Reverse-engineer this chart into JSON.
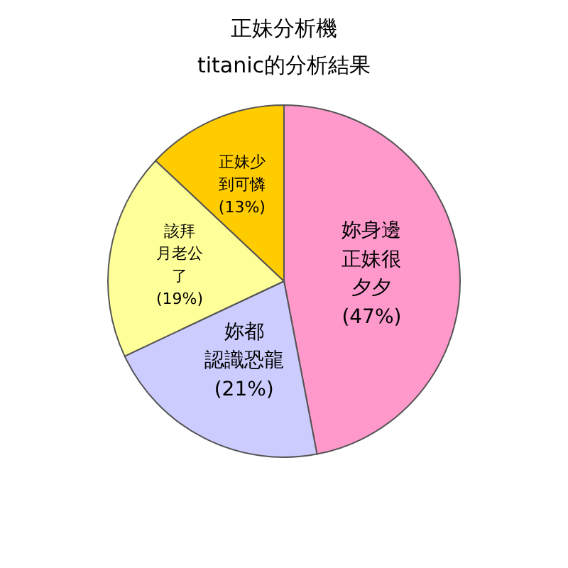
{
  "chart_data": {
    "type": "pie",
    "title": "正妹分析機",
    "subtitle": "titanic的分析結果",
    "categories": [
      "妳身邊正妹很夕夕",
      "妳都認識恐龍",
      "該拜月老公了",
      "正妹少到可憐"
    ],
    "values": [
      47,
      21,
      19,
      13
    ],
    "value_labels": [
      "(47%)",
      "(21%)",
      "(19%)",
      "(13%)"
    ],
    "colors": [
      "#ff99cc",
      "#ccccff",
      "#ffff99",
      "#ffcc00"
    ]
  }
}
